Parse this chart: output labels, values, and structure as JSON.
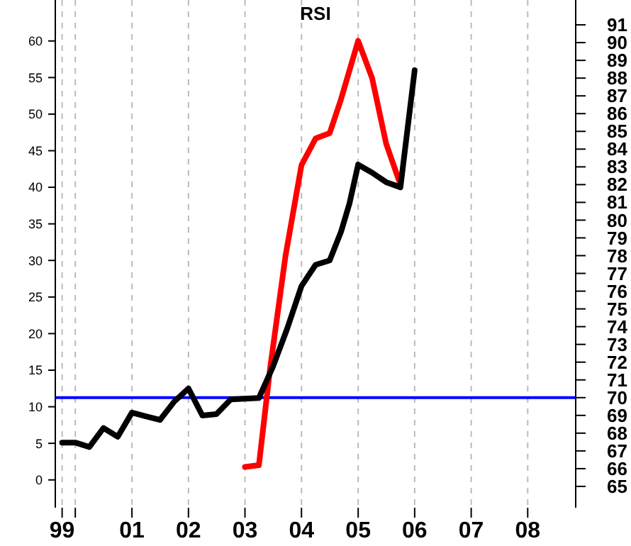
{
  "chart_data": {
    "type": "line",
    "title": "RSI",
    "xlim": [
      "1999-08-25",
      "2008-11-06"
    ],
    "xticks": [
      {
        "value": "1999-10-08",
        "label": "99"
      },
      {
        "value": "2000-01-01",
        "label": null
      },
      {
        "value": "2001-01-01",
        "label": "01"
      },
      {
        "value": "2002-01-01",
        "label": "02"
      },
      {
        "value": "2003-01-01",
        "label": "03"
      },
      {
        "value": "2004-01-01",
        "label": "04"
      },
      {
        "value": "2005-01-01",
        "label": "05"
      },
      {
        "value": "2006-01-01",
        "label": "06"
      },
      {
        "value": "2007-01-01",
        "label": "07"
      },
      {
        "value": "2008-01-01",
        "label": "08"
      }
    ],
    "ylim": [
      -3.8,
      65.6
    ],
    "yticks": [
      0,
      5,
      10,
      15,
      20,
      25,
      30,
      35,
      40,
      45,
      50,
      55,
      60
    ],
    "y2lim": [
      63.8,
      92.4
    ],
    "y2ticks": [
      65,
      66,
      67,
      68,
      69,
      70,
      71,
      72,
      73,
      74,
      75,
      76,
      77,
      78,
      79,
      80,
      81,
      82,
      83,
      84,
      85,
      86,
      87,
      88,
      89,
      90,
      91
    ],
    "grid": "x",
    "marker": "none",
    "line_style": "solid",
    "ref_lines": [
      {
        "axis": "y2",
        "value": 70,
        "color": "#0000ff"
      }
    ],
    "series": [
      {
        "color": "#ff0000",
        "axis": "y2",
        "x": [
          "2003-01",
          "2003-04",
          "2003-06-13",
          "2003-09-20",
          "2004-01",
          "2004-04",
          "2004-07",
          "2004-09-12",
          "2005-01",
          "2005-04",
          "2005-07",
          "2005-10"
        ],
        "values": [
          66.1,
          66.2,
          71.7,
          78,
          83.1,
          84.6,
          84.9,
          86.8,
          90.1,
          88,
          84.3,
          82
        ]
      },
      {
        "color": "#000000",
        "x": [
          "1999-10-08",
          "2000-01",
          "2000-04",
          "2000-07",
          "2000-10",
          "2001-01",
          "2001-04",
          "2001-07",
          "2001-10",
          "2002-01",
          "2002-04",
          "2002-07",
          "2002-10",
          "2003-01",
          "2003-04",
          "2003-07",
          "2003-10",
          "2004-01",
          "2004-04",
          "2004-07",
          "2004-09-12",
          "2004-11-06",
          "2005-01",
          "2005-04",
          "2005-07",
          "2005-10",
          "2006-01"
        ],
        "values": [
          5.1,
          5.1,
          4.5,
          7.1,
          5.9,
          9.2,
          8.7,
          8.2,
          10.7,
          12.5,
          8.8,
          9,
          11,
          11.1,
          11.2,
          15.5,
          20.7,
          26.5,
          29.4,
          30,
          33.9,
          37.8,
          43.1,
          42,
          40.7,
          40,
          56
        ]
      }
    ]
  }
}
